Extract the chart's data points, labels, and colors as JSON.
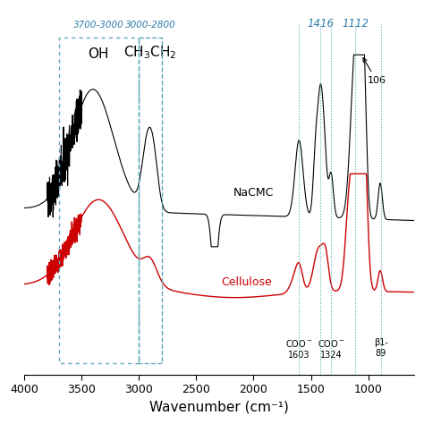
{
  "xlabel": "Wavenumber (cm⁻¹)",
  "xlim": [
    4000,
    600
  ],
  "nacmc_color": "#000000",
  "cellulose_color": "#cc0000",
  "box_color": "#5fa8b8",
  "vline_color": "#5fa8b8",
  "background_color": "#ffffff",
  "xticks": [
    4000,
    3500,
    3000,
    2500,
    2000,
    1500,
    1000
  ],
  "vlines": [
    1416,
    1112,
    1603,
    1324,
    890
  ]
}
